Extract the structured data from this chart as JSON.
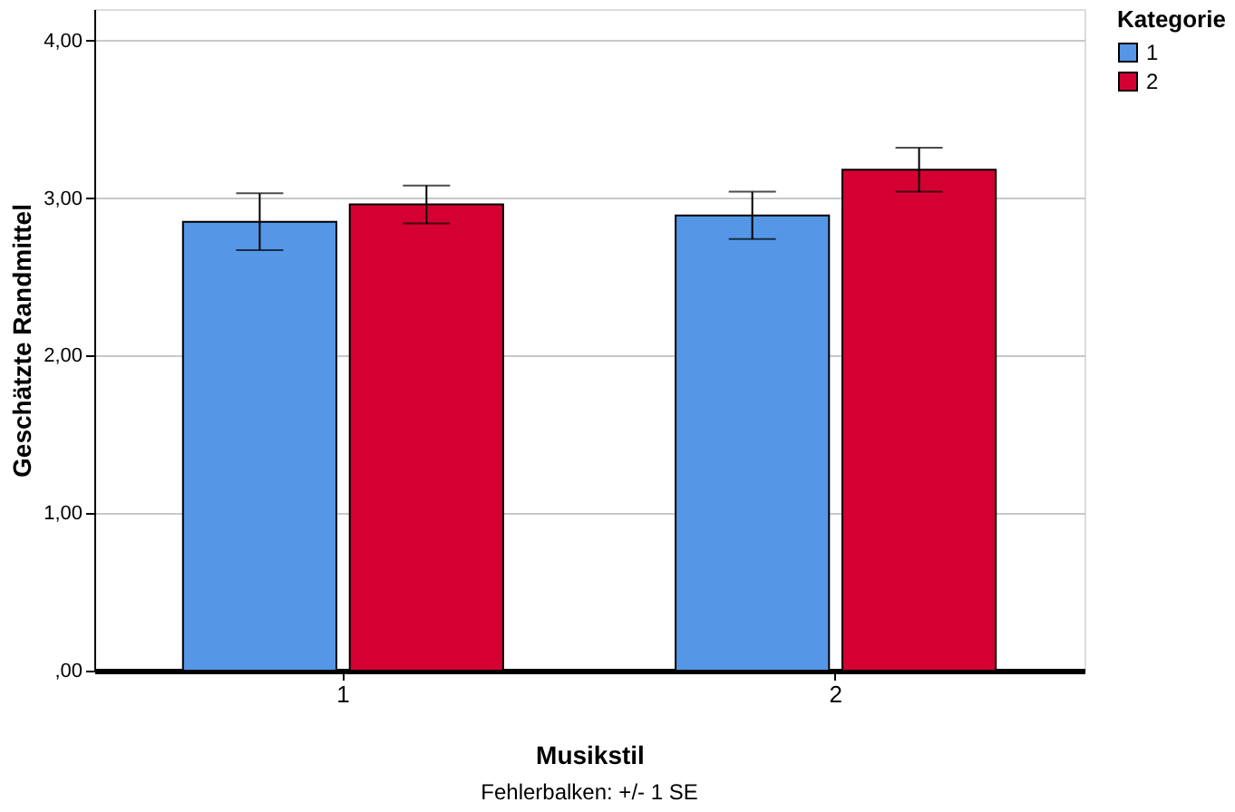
{
  "chart_data": {
    "type": "bar",
    "xlabel": "Musikstil",
    "ylabel": "Geschätzte Randmittel",
    "legend_title": "Kategorie",
    "categories": [
      "1",
      "2"
    ],
    "series": [
      {
        "name": "1",
        "color": "#5596e6",
        "values": [
          2.85,
          2.89
        ],
        "errors": [
          0.18,
          0.15
        ]
      },
      {
        "name": "2",
        "color": "#d50032",
        "values": [
          2.96,
          3.18
        ],
        "errors": [
          0.12,
          0.14
        ]
      }
    ],
    "ylim": [
      0,
      4.2
    ],
    "yticks": [
      {
        "value": 0,
        "label": ",00"
      },
      {
        "value": 1,
        "label": "1,00"
      },
      {
        "value": 2,
        "label": "2,00"
      },
      {
        "value": 3,
        "label": "3,00"
      },
      {
        "value": 4,
        "label": "4,00"
      }
    ],
    "grid": "y",
    "legend": "top right",
    "annotations": [
      "Fehlerbalken: +/- 1 SE"
    ]
  }
}
